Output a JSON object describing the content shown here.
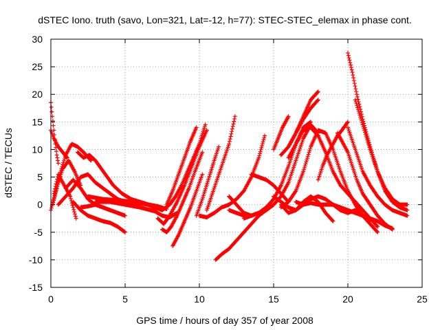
{
  "chart_data": {
    "type": "scatter",
    "title": "dSTEC Iono. truth (savo, Lon=321, Lat=-12, h=77): STEC-STEC_elemax in phase cont.",
    "xlabel": "GPS time / hours of day 357 of year 2008",
    "ylabel": "dSTEC  / TECUs",
    "xlim": [
      0,
      25
    ],
    "ylim": [
      -15,
      30
    ],
    "xticks": [
      0,
      5,
      10,
      15,
      20,
      25
    ],
    "yticks": [
      -15,
      -10,
      -5,
      0,
      5,
      10,
      15,
      20,
      25,
      30
    ],
    "grid": true,
    "marker": "+",
    "color": "#ff0000",
    "series": [
      {
        "x": [
          0.0,
          0.1,
          0.2,
          0.3,
          0.4,
          0.5
        ],
        "y": [
          18.5,
          16.0,
          13.5,
          11.0,
          9.0,
          7.5
        ]
      },
      {
        "x": [
          0.0,
          0.2,
          0.5,
          0.8,
          1.1
        ],
        "y": [
          13.5,
          12.0,
          10.5,
          9.5,
          8.5
        ]
      },
      {
        "x": [
          0.0,
          0.3,
          0.6,
          1.0,
          1.4,
          1.8,
          2.2,
          2.7
        ],
        "y": [
          -1.0,
          2.0,
          5.5,
          9.0,
          11.0,
          10.5,
          9.5,
          8.0
        ]
      },
      {
        "x": [
          0.1,
          0.4,
          0.8,
          1.2,
          1.6,
          2.0
        ],
        "y": [
          0.0,
          3.0,
          6.5,
          8.0,
          6.0,
          3.5
        ]
      },
      {
        "x": [
          0.2,
          0.5,
          0.9,
          1.3,
          1.7
        ],
        "y": [
          2.0,
          5.5,
          3.5,
          1.5,
          -2.5
        ]
      },
      {
        "x": [
          0.5,
          1.0,
          1.5,
          2.0,
          2.5,
          3.0,
          3.5,
          4.0,
          4.5,
          5.0,
          5.5,
          6.0
        ],
        "y": [
          0.0,
          1.5,
          3.0,
          5.0,
          5.5,
          4.0,
          3.0,
          2.0,
          1.0,
          0.5,
          0.3,
          0.0
        ]
      },
      {
        "x": [
          1.8,
          2.2,
          2.6,
          3.0,
          3.4,
          3.8,
          4.2,
          4.8,
          5.4,
          6.0,
          6.6,
          7.2,
          7.8
        ],
        "y": [
          9.5,
          8.5,
          9.0,
          8.0,
          6.5,
          5.0,
          3.5,
          2.0,
          1.0,
          0.5,
          0.0,
          -0.3,
          -0.8
        ]
      },
      {
        "x": [
          1.0,
          1.5,
          2.0,
          2.5,
          3.0,
          3.5,
          4.0
        ],
        "y": [
          3.0,
          4.5,
          3.0,
          1.0,
          0.0,
          -0.5,
          -1.0
        ]
      },
      {
        "x": [
          1.5,
          2.0,
          2.5,
          3.0,
          3.5,
          4.0,
          4.5,
          5.0
        ],
        "y": [
          0.5,
          -1.0,
          -2.0,
          -2.5,
          -3.0,
          -3.3,
          -4.0,
          -5.0
        ]
      },
      {
        "x": [
          2.0,
          2.5,
          3.0,
          3.5,
          4.0,
          4.5,
          5.0
        ],
        "y": [
          -0.5,
          -0.3,
          0.0,
          -0.5,
          -1.0,
          -1.5,
          -2.0
        ]
      },
      {
        "x": [
          3.0,
          4.0,
          5.0,
          6.0,
          7.0,
          7.5,
          8.0,
          8.5
        ],
        "y": [
          0.5,
          0.5,
          0.0,
          -0.5,
          -1.2,
          -2.0,
          -2.3,
          -1.5
        ]
      },
      {
        "x": [
          2.5,
          3.5,
          4.5,
          5.5,
          6.5,
          7.5,
          8.0,
          8.4,
          8.8,
          9.2,
          9.6,
          10.0,
          10.4
        ],
        "y": [
          1.5,
          1.0,
          0.8,
          0.5,
          0.0,
          -1.0,
          0.0,
          1.5,
          3.5,
          6.0,
          8.5,
          11.0,
          14.5
        ]
      },
      {
        "x": [
          7.2,
          7.6,
          8.0,
          8.5,
          9.0,
          9.5,
          10.0,
          10.5
        ],
        "y": [
          -2.5,
          -3.5,
          -2.0,
          0.5,
          3.5,
          7.0,
          10.5,
          13.5
        ]
      },
      {
        "x": [
          7.5,
          7.8,
          8.1,
          8.5,
          8.9,
          9.3,
          9.7,
          10.2
        ],
        "y": [
          -4.5,
          -5.0,
          -4.0,
          -2.0,
          0.5,
          3.0,
          6.0,
          9.5
        ]
      },
      {
        "x": [
          8.2,
          8.6,
          9.0,
          9.4,
          9.8,
          10.2
        ],
        "y": [
          -7.5,
          -5.5,
          -3.0,
          -0.5,
          2.5,
          5.5
        ]
      },
      {
        "x": [
          7.8,
          8.2,
          8.6,
          9.0,
          9.4,
          9.8
        ],
        "y": [
          0.0,
          2.5,
          5.5,
          8.5,
          11.5,
          14.0
        ]
      },
      {
        "x": [
          9.8,
          10.2,
          10.6,
          11.0,
          11.3
        ],
        "y": [
          -2.0,
          1.0,
          4.5,
          8.0,
          10.5
        ]
      },
      {
        "x": [
          10.5,
          11.0,
          11.5,
          12.0,
          12.4
        ],
        "y": [
          -1.0,
          3.0,
          7.0,
          11.0,
          16.0
        ]
      },
      {
        "x": [
          10.0,
          10.5,
          11.0,
          11.5,
          12.0,
          12.5,
          13.0,
          13.5,
          14.0,
          14.4
        ],
        "y": [
          -2.0,
          -2.3,
          -1.5,
          -0.5,
          0.0,
          1.0,
          2.5,
          5.0,
          8.5,
          12.5
        ]
      },
      {
        "x": [
          11.1,
          11.5,
          12.0,
          12.5,
          13.0,
          13.5,
          14.0,
          14.5,
          15.0
        ],
        "y": [
          -10.0,
          -9.0,
          -8.0,
          -6.5,
          -5.0,
          -3.5,
          -2.0,
          -1.0,
          0.0
        ]
      },
      {
        "x": [
          12.0,
          12.5,
          13.0,
          13.5,
          14.0
        ],
        "y": [
          1.5,
          0.0,
          -1.5,
          -2.0,
          -1.5
        ]
      },
      {
        "x": [
          13.5,
          14.0,
          14.5,
          15.0,
          15.5,
          16.0
        ],
        "y": [
          5.5,
          5.0,
          4.5,
          3.5,
          2.0,
          0.5
        ]
      },
      {
        "x": [
          13.0,
          13.5,
          14.0,
          14.5,
          15.0,
          15.5,
          16.0,
          16.5,
          17.0,
          17.5,
          18.0
        ],
        "y": [
          -2.5,
          -2.0,
          -1.5,
          -1.0,
          0.0,
          1.5,
          4.0,
          8.0,
          12.0,
          14.5,
          13.0
        ]
      },
      {
        "x": [
          12.0,
          12.5,
          13.0,
          13.5,
          14.0,
          14.5,
          15.0,
          15.5,
          16.0,
          16.5,
          17.0,
          17.5
        ],
        "y": [
          -1.0,
          -1.5,
          -2.0,
          -2.0,
          -1.5,
          -0.5,
          1.0,
          3.5,
          7.0,
          11.0,
          14.0,
          15.0
        ]
      },
      {
        "x": [
          15.5,
          16.0,
          16.5,
          17.0,
          17.5,
          18.0,
          18.5,
          19.0,
          19.5,
          20.0,
          20.5,
          21.0,
          21.5,
          22.0
        ],
        "y": [
          -0.5,
          0.5,
          2.5,
          6.0,
          10.5,
          13.5,
          13.0,
          10.0,
          6.0,
          2.5,
          0.0,
          -2.0,
          -3.5,
          -5.0
        ]
      },
      {
        "x": [
          15.5,
          16.0,
          16.5,
          17.0,
          17.5,
          18.0
        ],
        "y": [
          9.0,
          10.5,
          13.0,
          15.5,
          17.5,
          19.0
        ]
      },
      {
        "x": [
          16.0,
          16.5,
          17.0,
          17.5,
          18.0
        ],
        "y": [
          10.5,
          13.0,
          16.0,
          19.0,
          20.5
        ]
      },
      {
        "x": [
          15.0,
          15.3,
          15.6,
          16.0
        ],
        "y": [
          10.0,
          12.0,
          14.0,
          16.0
        ]
      },
      {
        "x": [
          16.0,
          16.5,
          17.0,
          17.5,
          18.0,
          18.5,
          19.0,
          19.5,
          20.0,
          20.5,
          21.0,
          21.5,
          22.0
        ],
        "y": [
          8.5,
          11.0,
          13.5,
          14.0,
          12.5,
          9.5,
          6.0,
          3.5,
          2.0,
          0.5,
          -1.0,
          -2.5,
          -4.0
        ]
      },
      {
        "x": [
          15.0,
          15.5,
          16.0,
          16.5,
          17.0,
          17.5,
          18.0,
          18.5,
          19.0,
          19.5,
          20.0,
          20.5,
          21.0,
          21.5,
          22.0,
          22.5,
          23.0
        ],
        "y": [
          1.5,
          0.5,
          -0.5,
          -1.0,
          0.0,
          1.0,
          1.5,
          1.0,
          0.0,
          -0.5,
          -1.0,
          -1.5,
          -2.0,
          -2.5,
          -3.0,
          -3.8,
          -4.3
        ]
      },
      {
        "x": [
          15.5,
          16.0,
          16.5,
          17.0,
          17.5,
          18.0,
          18.5,
          19.0
        ],
        "y": [
          0.0,
          -1.5,
          -1.0,
          0.5,
          1.5,
          0.5,
          -1.5,
          -3.0
        ]
      },
      {
        "x": [
          16.5,
          17.0,
          17.5,
          18.0,
          18.5,
          19.0,
          19.5,
          20.0,
          20.5,
          21.0,
          21.5
        ],
        "y": [
          0.5,
          0.0,
          0.3,
          0.0,
          0.0,
          0.0,
          -1.0,
          -1.5,
          -1.0,
          -2.0,
          -3.0
        ]
      },
      {
        "x": [
          18.0,
          18.3,
          18.6,
          19.0,
          19.3,
          19.6,
          20.0
        ],
        "y": [
          4.5,
          7.0,
          9.0,
          11.0,
          12.5,
          13.5,
          15.0
        ]
      },
      {
        "x": [
          19.3,
          19.6,
          20.0,
          20.3,
          20.6,
          21.0,
          21.5,
          22.0,
          22.5,
          23.0
        ],
        "y": [
          13.0,
          11.5,
          9.5,
          7.0,
          4.5,
          2.0,
          0.0,
          -2.0,
          -3.5,
          -4.5
        ]
      },
      {
        "x": [
          20.0,
          20.3,
          20.6,
          21.0,
          21.5,
          22.0,
          22.5,
          23.0,
          23.5,
          24.0
        ],
        "y": [
          27.5,
          24.0,
          20.0,
          15.5,
          10.5,
          6.0,
          2.5,
          0.5,
          -0.5,
          -1.0
        ]
      },
      {
        "x": [
          20.5,
          21.0,
          21.5,
          22.0,
          22.5,
          23.0,
          23.5,
          24.0
        ],
        "y": [
          19.0,
          14.5,
          10.0,
          6.0,
          3.0,
          1.0,
          0.0,
          0.0
        ]
      },
      {
        "x": [
          20.0,
          20.5,
          21.0,
          21.5,
          22.0,
          22.5,
          23.0,
          23.5,
          24.0
        ],
        "y": [
          14.0,
          10.0,
          6.0,
          3.5,
          1.5,
          0.0,
          -1.0,
          -1.5,
          -2.0
        ]
      }
    ]
  }
}
